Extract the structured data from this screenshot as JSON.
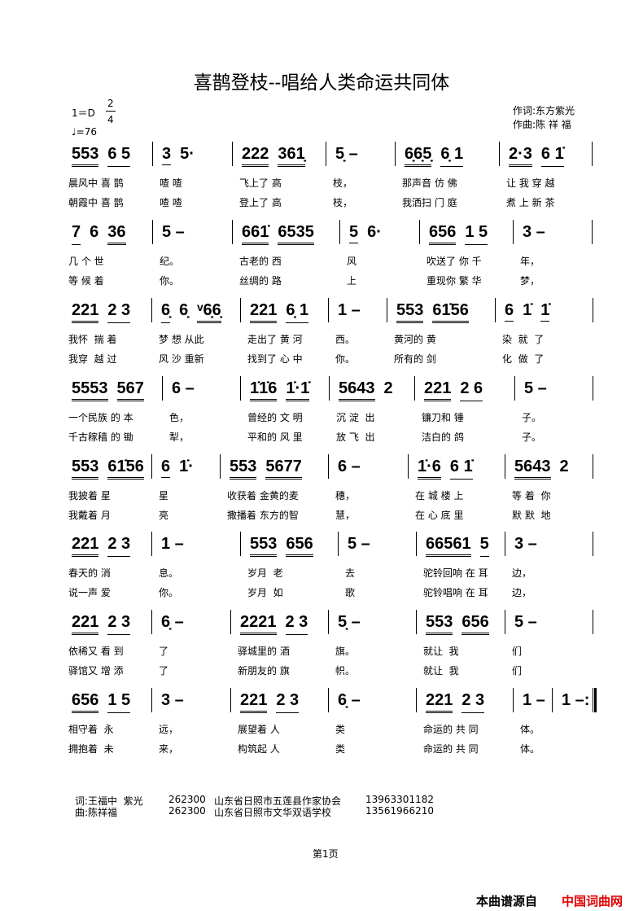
{
  "title": "喜鹊登枝--唱给人类命运共同体",
  "key": "1＝D",
  "time_top": "2",
  "time_bottom": "4",
  "tempo": "♩=76",
  "lyricist": "作词:东方紫光",
  "composer": "作曲:陈 祥 福",
  "rows": [
    {
      "measures": [
        {
          "notes": [
            {
              "t": "553",
              "u": 2
            },
            {
              "t": "6 5",
              "u": 1
            }
          ],
          "lyrics": [
            "晨风中 喜 鹊",
            "朝霞中 喜 鹊"
          ]
        },
        {
          "notes": [
            {
              "t": "3",
              "u": 1
            },
            {
              "t": "5·",
              "u": 0
            }
          ],
          "lyrics": [
            "喳 喳",
            "喳 喳"
          ]
        },
        {
          "notes": [
            {
              "t": "222",
              "u": 2
            },
            {
              "t": "361̣",
              "u": 2
            }
          ],
          "lyrics": [
            "飞上了 高",
            "登上了 高"
          ]
        },
        {
          "notes": [
            {
              "t": "5̣ –",
              "u": 0
            }
          ],
          "lyrics": [
            "枝，",
            "枝，"
          ]
        },
        {
          "notes": [
            {
              "t": "6̣6̣5̣",
              "u": 2
            },
            {
              "t": "6̣ 1",
              "u": 1
            }
          ],
          "lyrics": [
            "那声音 仿 佛",
            "我洒扫 门 庭"
          ]
        },
        {
          "notes": [
            {
              "t": "2·3",
              "u": 2
            },
            {
              "t": "6 1̇",
              "u": 1
            }
          ],
          "lyrics": [
            "让 我 穿 越",
            "煮 上 新 茶"
          ]
        }
      ]
    },
    {
      "measures": [
        {
          "notes": [
            {
              "t": "7",
              "u": 1
            },
            {
              "t": "6",
              "u": 0
            },
            {
              "t": "36",
              "u": 2
            }
          ],
          "lyrics": [
            "几 个 世",
            "等 候 着"
          ]
        },
        {
          "notes": [
            {
              "t": "5 –",
              "u": 0
            }
          ],
          "lyrics": [
            "纪。",
            "你。"
          ]
        },
        {
          "notes": [
            {
              "t": "661̇",
              "u": 2
            },
            {
              "t": "6535",
              "u": 2
            }
          ],
          "lyrics": [
            "古老的 西",
            "丝绸的 路"
          ]
        },
        {
          "notes": [
            {
              "t": "5",
              "u": 1
            },
            {
              "t": "6·",
              "u": 0
            }
          ],
          "lyrics": [
            "风",
            "上"
          ]
        },
        {
          "notes": [
            {
              "t": "656",
              "u": 2
            },
            {
              "t": "1 5",
              "u": 1
            }
          ],
          "lyrics": [
            "吹送了 你 千",
            "重现你 繁 华"
          ]
        },
        {
          "notes": [
            {
              "t": "3 –",
              "u": 0
            }
          ],
          "lyrics": [
            "年，",
            "梦，"
          ]
        }
      ]
    },
    {
      "measures": [
        {
          "notes": [
            {
              "t": "221",
              "u": 2
            },
            {
              "t": "2 3",
              "u": 1
            }
          ],
          "lyrics": [
            "我怀  揣 着",
            "我穿  越 过"
          ]
        },
        {
          "notes": [
            {
              "t": "6̣",
              "u": 1
            },
            {
              "t": "6̣",
              "u": 0
            },
            {
              "t": "ᵛ6̣6̣",
              "u": 2
            }
          ],
          "lyrics": [
            "梦 想 从此",
            "风 沙 重新"
          ]
        },
        {
          "notes": [
            {
              "t": "221",
              "u": 2
            },
            {
              "t": "6̣ 1",
              "u": 1
            }
          ],
          "lyrics": [
            "走出了 黄 河",
            "找到了 心 中"
          ]
        },
        {
          "notes": [
            {
              "t": "1 –",
              "u": 0
            }
          ],
          "lyrics": [
            "西。",
            "你。"
          ]
        },
        {
          "notes": [
            {
              "t": "553",
              "u": 2
            },
            {
              "t": "61̇56",
              "u": 2
            }
          ],
          "lyrics": [
            "黄河的 黄",
            "所有的 剑"
          ]
        },
        {
          "notes": [
            {
              "t": "6",
              "u": 1
            },
            {
              "t": "1̇",
              "u": 0
            },
            {
              "t": "1̇",
              "u": 1
            }
          ],
          "lyrics": [
            "染  就  了",
            "化  做  了"
          ]
        }
      ]
    },
    {
      "measures": [
        {
          "notes": [
            {
              "t": "5553",
              "u": 2
            },
            {
              "t": "567",
              "u": 2
            }
          ],
          "lyrics": [
            "一个民族 的 本",
            "千古稼穑 的 锄"
          ]
        },
        {
          "notes": [
            {
              "t": "6 –",
              "u": 0
            }
          ],
          "lyrics": [
            "色，",
            "犁，"
          ]
        },
        {
          "notes": [
            {
              "t": "1̇1̇6",
              "u": 2
            },
            {
              "t": "1̇·1̇",
              "u": 2
            }
          ],
          "lyrics": [
            "曾经的 文 明",
            "平和的 风 里"
          ]
        },
        {
          "notes": [
            {
              "t": "5643",
              "u": 2
            },
            {
              "t": "2",
              "u": 0
            }
          ],
          "lyrics": [
            "沉 淀  出",
            "放 飞  出"
          ]
        },
        {
          "notes": [
            {
              "t": "221",
              "u": 2
            },
            {
              "t": "2 6",
              "u": 1
            }
          ],
          "lyrics": [
            "镰刀和 锤",
            "洁白的 鸽"
          ]
        },
        {
          "notes": [
            {
              "t": "5 –",
              "u": 0
            }
          ],
          "lyrics": [
            "子。",
            "子。"
          ]
        }
      ]
    },
    {
      "measures": [
        {
          "notes": [
            {
              "t": "553",
              "u": 2
            },
            {
              "t": "61̇56",
              "u": 2
            }
          ],
          "lyrics": [
            "我披着 星",
            "我戴着 月"
          ]
        },
        {
          "notes": [
            {
              "t": "6",
              "u": 1
            },
            {
              "t": "1̇·",
              "u": 0
            }
          ],
          "lyrics": [
            "星",
            "亮"
          ]
        },
        {
          "notes": [
            {
              "t": "553",
              "u": 2
            },
            {
              "t": "5677",
              "u": 2
            }
          ],
          "lyrics": [
            "收获着 金黄的麦",
            "撒播着 东方的智"
          ]
        },
        {
          "notes": [
            {
              "t": "6 –",
              "u": 0
            }
          ],
          "lyrics": [
            "穗，",
            "慧，"
          ]
        },
        {
          "notes": [
            {
              "t": "1̇·6",
              "u": 2
            },
            {
              "t": "6 1̇",
              "u": 1
            }
          ],
          "lyrics": [
            "在 城 楼 上",
            "在 心 底 里"
          ]
        },
        {
          "notes": [
            {
              "t": "5643",
              "u": 2
            },
            {
              "t": "2",
              "u": 0
            }
          ],
          "lyrics": [
            "等 着  你",
            "默 默  地"
          ]
        }
      ]
    },
    {
      "measures": [
        {
          "notes": [
            {
              "t": "221",
              "u": 2
            },
            {
              "t": "2 3",
              "u": 1
            }
          ],
          "lyrics": [
            "春天的 消",
            "说一声 爱"
          ]
        },
        {
          "notes": [
            {
              "t": "1 –",
              "u": 0
            }
          ],
          "lyrics": [
            "息。",
            "你。"
          ]
        },
        {
          "notes": [
            {
              "t": "553",
              "u": 2
            },
            {
              "t": "656",
              "u": 2
            }
          ],
          "lyrics": [
            "岁月  老",
            "岁月  如"
          ]
        },
        {
          "notes": [
            {
              "t": "5 –",
              "u": 0
            }
          ],
          "lyrics": [
            "去",
            "歌"
          ]
        },
        {
          "notes": [
            {
              "t": "66561",
              "u": 2
            },
            {
              "t": "5",
              "u": 1
            }
          ],
          "lyrics": [
            "驼铃回响 在 耳",
            "驼铃唱响 在 耳"
          ]
        },
        {
          "notes": [
            {
              "t": "3 –",
              "u": 0
            }
          ],
          "lyrics": [
            "边，",
            "边，"
          ]
        }
      ]
    },
    {
      "measures": [
        {
          "notes": [
            {
              "t": "221",
              "u": 2
            },
            {
              "t": "2 3",
              "u": 1
            }
          ],
          "lyrics": [
            "依稀又 看 到",
            "驿馆又 增 添"
          ]
        },
        {
          "notes": [
            {
              "t": "6̣ –",
              "u": 0
            }
          ],
          "lyrics": [
            "了",
            "了"
          ]
        },
        {
          "notes": [
            {
              "t": "2221",
              "u": 2
            },
            {
              "t": "2 3",
              "u": 1
            }
          ],
          "lyrics": [
            "驿城里的 酒",
            "新朋友的 旗"
          ]
        },
        {
          "notes": [
            {
              "t": "5̣ –",
              "u": 0
            }
          ],
          "lyrics": [
            "旗。",
            "帜。"
          ]
        },
        {
          "notes": [
            {
              "t": "553",
              "u": 2
            },
            {
              "t": "656",
              "u": 2
            }
          ],
          "lyrics": [
            "就让  我",
            "就让  我"
          ]
        },
        {
          "notes": [
            {
              "t": "5 –",
              "u": 0
            }
          ],
          "lyrics": [
            "们",
            "们"
          ]
        }
      ]
    },
    {
      "measures": [
        {
          "notes": [
            {
              "t": "656",
              "u": 2
            },
            {
              "t": "1 5",
              "u": 1
            }
          ],
          "lyrics": [
            "相守着  永",
            "拥抱着  未"
          ]
        },
        {
          "notes": [
            {
              "t": "3 –",
              "u": 0
            }
          ],
          "lyrics": [
            "远，",
            "来，"
          ]
        },
        {
          "notes": [
            {
              "t": "221",
              "u": 2
            },
            {
              "t": "2 3",
              "u": 1
            }
          ],
          "lyrics": [
            "展望着 人",
            "构筑起 人"
          ]
        },
        {
          "notes": [
            {
              "t": "6̣ –",
              "u": 0
            }
          ],
          "lyrics": [
            "类",
            "类"
          ]
        },
        {
          "notes": [
            {
              "t": "221",
              "u": 2
            },
            {
              "t": "2 3",
              "u": 1
            }
          ],
          "lyrics": [
            "命运的 共 同",
            "命运的 共 同"
          ]
        },
        {
          "notes": [
            {
              "t": "1 –",
              "u": 0
            }
          ],
          "lyrics": [
            "体。",
            "体。"
          ]
        },
        {
          "notes": [
            {
              "t": "1 –:",
              "u": 0
            }
          ],
          "lyrics": [
            "",
            ""
          ]
        }
      ]
    }
  ],
  "footer": {
    "line1": {
      "label": "词:王福中  紫光",
      "zip": "262300",
      "org": "山东省日照市五莲县作家协会",
      "phone": "13963301182"
    },
    "line2": {
      "label": "曲:陈祥福",
      "zip": "262300",
      "org": "山东省日照市文华双语学校",
      "phone": "13561966210"
    }
  },
  "page": "第1页",
  "source_prefix": "本曲谱源自",
  "source_site": "中国词曲网",
  "colors": {
    "source_site": "#e00000"
  }
}
